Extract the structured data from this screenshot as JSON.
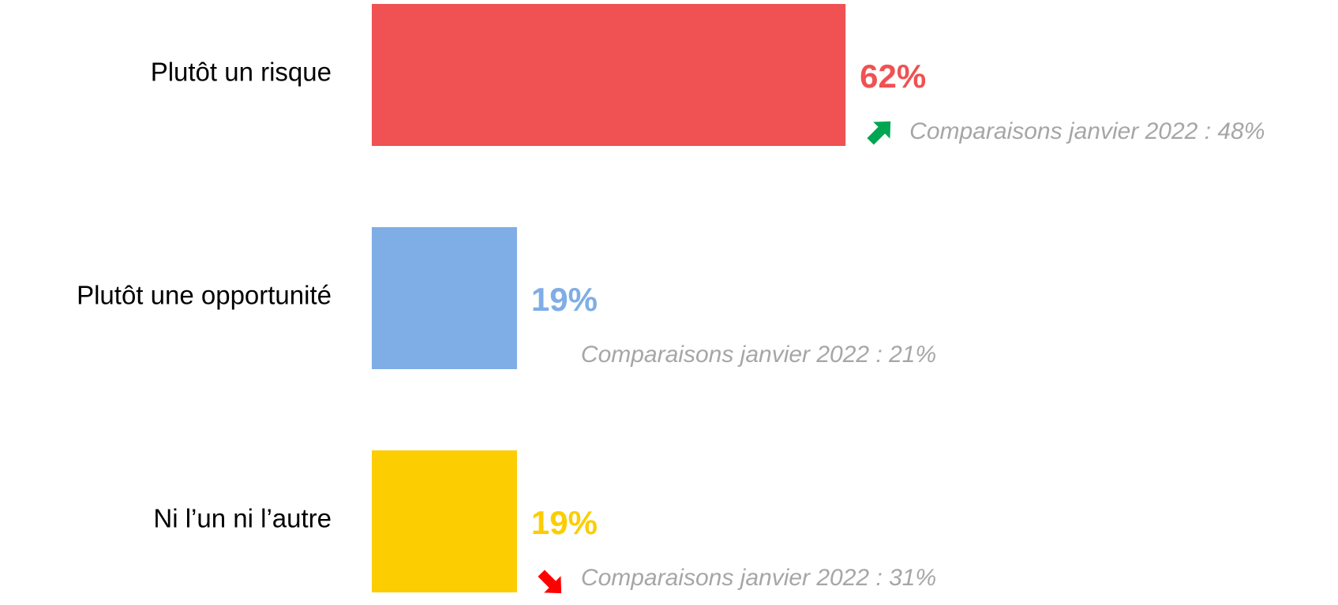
{
  "chart_data": {
    "type": "bar",
    "orientation": "horizontal",
    "categories": [
      "Plutôt un risque",
      "Plutôt une opportunité",
      "Ni l’un ni l’autre"
    ],
    "values": [
      62,
      19,
      19
    ],
    "value_labels": [
      "62%",
      "19%",
      "19%"
    ],
    "colors": [
      "#f05152",
      "#7fade6",
      "#fccd00"
    ],
    "annotations": [
      "Comparaisons janvier 2022 : 48%",
      "Comparaisons janvier 2022 : 21%",
      "Comparaisons janvier 2022 : 31%"
    ]
  }
}
